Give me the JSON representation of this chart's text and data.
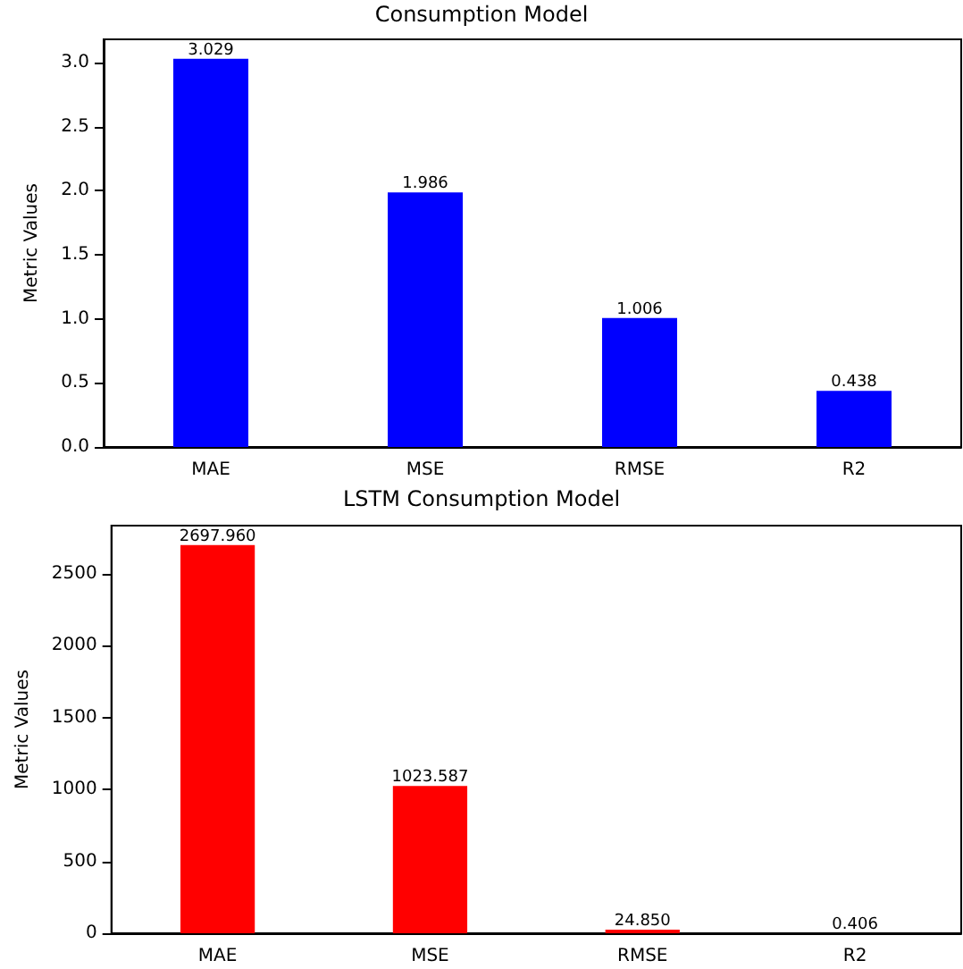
{
  "chart_data": [
    {
      "type": "bar",
      "title": "Consumption Model",
      "ylabel": "Metric Values",
      "categories": [
        "MAE",
        "MSE",
        "RMSE",
        "R2"
      ],
      "series": [
        {
          "color": "#0000ff",
          "values": [
            3.029,
            1.986,
            1.006,
            0.438
          ],
          "value_labels": [
            "3.029",
            "1.986",
            "1.006",
            "0.438"
          ]
        }
      ],
      "ylim": [
        0,
        3.18
      ],
      "yticks": [
        {
          "value": 0,
          "label": "0.0"
        },
        {
          "value": 0.5,
          "label": "0.5"
        },
        {
          "value": 1,
          "label": "1.0"
        },
        {
          "value": 1.5,
          "label": "1.5"
        },
        {
          "value": 2,
          "label": "2.0"
        },
        {
          "value": 2.5,
          "label": "2.5"
        },
        {
          "value": 3,
          "label": "3.0"
        }
      ],
      "grid": false
    },
    {
      "type": "bar",
      "title": "LSTM Consumption Model",
      "ylabel": "Metric Values",
      "categories": [
        "MAE",
        "MSE",
        "RMSE",
        "R2"
      ],
      "series": [
        {
          "color": "#ff0000",
          "values": [
            2697.96,
            1023.587,
            24.85,
            0.406
          ],
          "value_labels": [
            "2697.960",
            "1023.587",
            "24.850",
            "0.406"
          ]
        }
      ],
      "ylim": [
        0,
        2833
      ],
      "yticks": [
        0,
        500,
        1000,
        1500,
        2000,
        2500
      ],
      "grid": false
    }
  ]
}
